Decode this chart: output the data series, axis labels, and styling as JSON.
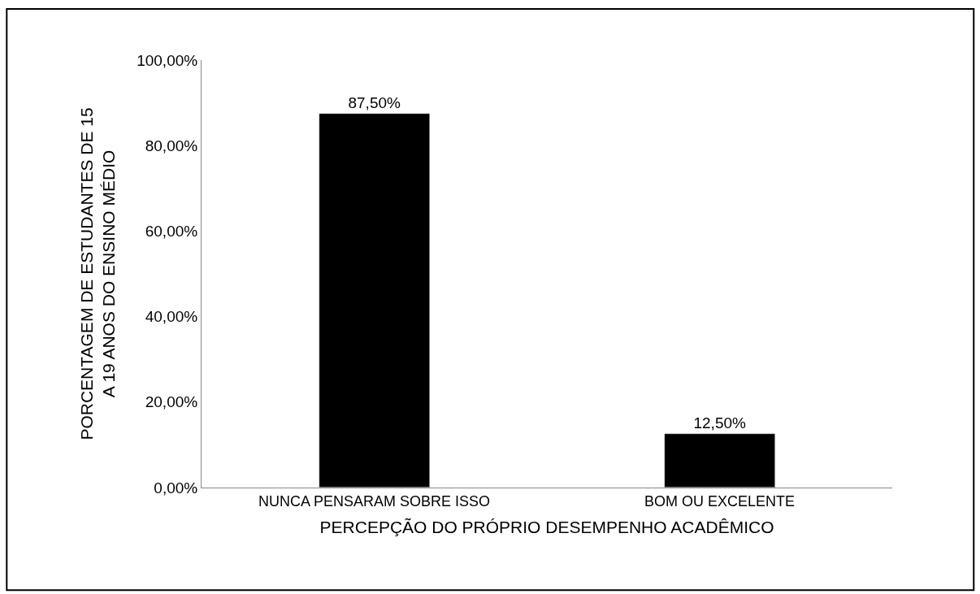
{
  "chart_data": {
    "type": "bar",
    "categories": [
      "NUNCA PENSARAM SOBRE ISSO",
      "BOM OU EXCELENTE"
    ],
    "values": [
      87.5,
      12.5
    ],
    "value_labels": [
      "87,50%",
      "12,50%"
    ],
    "color": "#000000",
    "xlabel": "PERCEPÇÃO DO PRÓPRIO DESEMPENHO ACADÊMICO",
    "ylabel": "PORCENTAGEM DE ESTUDANTES DE 15\nA 19 ANOS DO ENSINO MÉDIO",
    "ylim": [
      0,
      100
    ],
    "yticks": [
      {
        "value": 0,
        "label": "0,00%"
      },
      {
        "value": 20,
        "label": "20,00%"
      },
      {
        "value": 40,
        "label": "40,00%"
      },
      {
        "value": 60,
        "label": "60,00%"
      },
      {
        "value": 80,
        "label": "80,00%"
      },
      {
        "value": 100,
        "label": "100,00%"
      }
    ]
  }
}
